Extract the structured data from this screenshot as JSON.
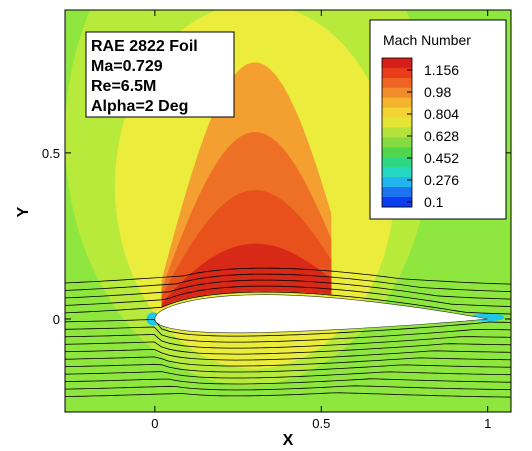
{
  "chart_data": {
    "type": "heatmap",
    "plot_kind": "contour",
    "x_label": "X",
    "y_label": "Y",
    "xlim": [
      -0.27,
      1.07
    ],
    "ylim": [
      -0.28,
      0.93
    ],
    "x_ticks": [
      {
        "value": 0,
        "label": "0"
      },
      {
        "value": 0.5,
        "label": "0.5"
      },
      {
        "value": 1,
        "label": "1"
      }
    ],
    "y_ticks": [
      {
        "value": 0,
        "label": "0"
      },
      {
        "value": 0.5,
        "label": "0.5"
      }
    ],
    "info_lines": [
      "RAE 2822 Foil",
      "Ma=0.729",
      "Re=6.5M",
      "Alpha=2 Deg"
    ],
    "legend": {
      "title": "Mach Number",
      "placement": "top-right",
      "levels": [
        1.156,
        0.98,
        0.804,
        0.628,
        0.452,
        0.276,
        0.1
      ],
      "labels": [
        "1.156",
        "0.98",
        "0.804",
        "0.628",
        "0.452",
        "0.276",
        "0.1"
      ],
      "colors": [
        "#e8281c",
        "#f08a28",
        "#f4d232",
        "#d8e63a",
        "#4ed65a",
        "#2ad8c0",
        "#0a3cf0"
      ]
    },
    "field_colors": {
      "freestream": "#8ee63e",
      "pale": "#b8ea3c",
      "yellow": "#ecec3c",
      "orange": "#f4a030",
      "red": "#e8501c",
      "deep_red": "#d82818",
      "stagnation": "#1ec8e6",
      "airfoil": "#ffffff"
    },
    "airfoil": {
      "chord_start": 0,
      "chord_end": 1,
      "max_thickness": 0.12,
      "angle_of_attack_deg": 2
    },
    "shock_x": 0.53,
    "streamline_count": 16
  }
}
